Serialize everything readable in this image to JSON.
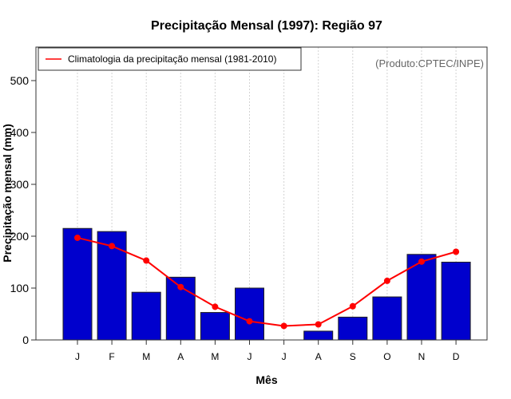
{
  "chart_data": {
    "type": "bar",
    "title": "Precipitação Mensal (1997): Região 97",
    "xlabel": "Mês",
    "ylabel": "Precipitação mensal (mm)",
    "categories": [
      "J",
      "F",
      "M",
      "A",
      "M",
      "J",
      "J",
      "A",
      "S",
      "O",
      "N",
      "D"
    ],
    "ylim": [
      0,
      560
    ],
    "yticks": [
      0,
      100,
      200,
      300,
      400,
      500
    ],
    "ytick_labels": [
      "0",
      "100",
      "200",
      "300",
      "400",
      "500"
    ],
    "grid": "vertical dotted at categories",
    "series": [
      {
        "name": "Precipitação mensal 1997",
        "type": "bar",
        "color": "#0000cd",
        "values": [
          215,
          209,
          92,
          121,
          53,
          100,
          0,
          17,
          44,
          83,
          165,
          150
        ]
      },
      {
        "name": "Climatologia da precipitação mensal (1981-2010)",
        "type": "line",
        "color": "#ff0000",
        "values": [
          197,
          181,
          153,
          102,
          64,
          36,
          27,
          30,
          65,
          114,
          151,
          170
        ]
      }
    ],
    "legend": {
      "placement": "top-left",
      "entries": [
        {
          "label": "Climatologia da precipitação mensal (1981-2010)",
          "color": "#ff0000"
        }
      ]
    },
    "annotation": "(Produto:CPTEC/INPE)"
  }
}
